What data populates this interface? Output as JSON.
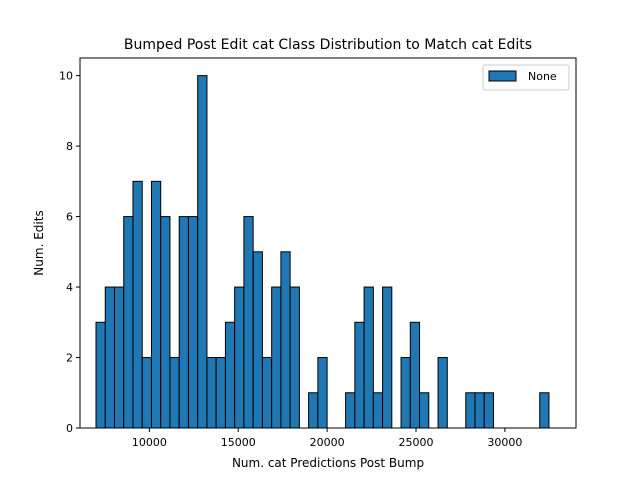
{
  "chart_data": {
    "type": "bar",
    "title": "Bumped Post Edit cat Class Distribution to Match cat Edits",
    "xlabel": "Num. cat Predictions Post Bump",
    "ylabel": "Num. Edits",
    "xlim": [
      6100,
      34000
    ],
    "ylim": [
      0,
      10.5
    ],
    "xticks": [
      10000,
      15000,
      20000,
      25000,
      30000
    ],
    "yticks": [
      0,
      2,
      4,
      6,
      8,
      10
    ],
    "grid": false,
    "legend": {
      "position": "top-right",
      "entries": [
        "None"
      ]
    },
    "bar_color": "#1f77b4",
    "edge_color": "#000000",
    "bins": {
      "start": 7000,
      "width": 520,
      "counts": [
        3,
        4,
        4,
        6,
        7,
        2,
        7,
        6,
        2,
        6,
        6,
        10,
        2,
        2,
        3,
        4,
        6,
        5,
        2,
        4,
        5,
        4,
        0,
        1,
        2,
        0,
        0,
        1,
        3,
        4,
        1,
        4,
        0,
        2,
        3,
        1,
        0,
        2,
        0,
        0,
        1,
        1,
        1,
        0,
        0,
        0,
        0,
        0,
        1
      ]
    }
  }
}
